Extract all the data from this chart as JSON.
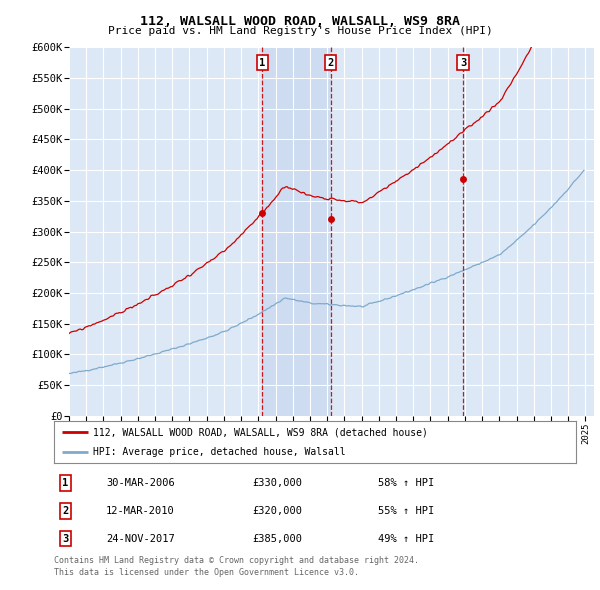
{
  "title1": "112, WALSALL WOOD ROAD, WALSALL, WS9 8RA",
  "title2": "Price paid vs. HM Land Registry's House Price Index (HPI)",
  "ylabel_ticks": [
    "£0",
    "£50K",
    "£100K",
    "£150K",
    "£200K",
    "£250K",
    "£300K",
    "£350K",
    "£400K",
    "£450K",
    "£500K",
    "£550K",
    "£600K"
  ],
  "ylim": [
    0,
    600000
  ],
  "xlim_start": 1995.25,
  "xlim_end": 2025.5,
  "background_color": "#dce8f5",
  "grid_color": "#ffffff",
  "red_line_color": "#cc0000",
  "blue_line_color": "#7faacc",
  "vline_color": "#cc0000",
  "highlight_color": "#c8d8ee",
  "transaction_markers": [
    {
      "x": 2006.24,
      "label": "1",
      "price": 330000,
      "date": "30-MAR-2006",
      "pct": "58%"
    },
    {
      "x": 2010.2,
      "label": "2",
      "price": 320000,
      "date": "12-MAR-2010",
      "pct": "55%"
    },
    {
      "x": 2017.9,
      "label": "3",
      "price": 385000,
      "date": "24-NOV-2017",
      "pct": "49%"
    }
  ],
  "legend_label_red": "112, WALSALL WOOD ROAD, WALSALL, WS9 8RA (detached house)",
  "legend_label_blue": "HPI: Average price, detached house, Walsall",
  "footer1": "Contains HM Land Registry data © Crown copyright and database right 2024.",
  "footer2": "This data is licensed under the Open Government Licence v3.0."
}
